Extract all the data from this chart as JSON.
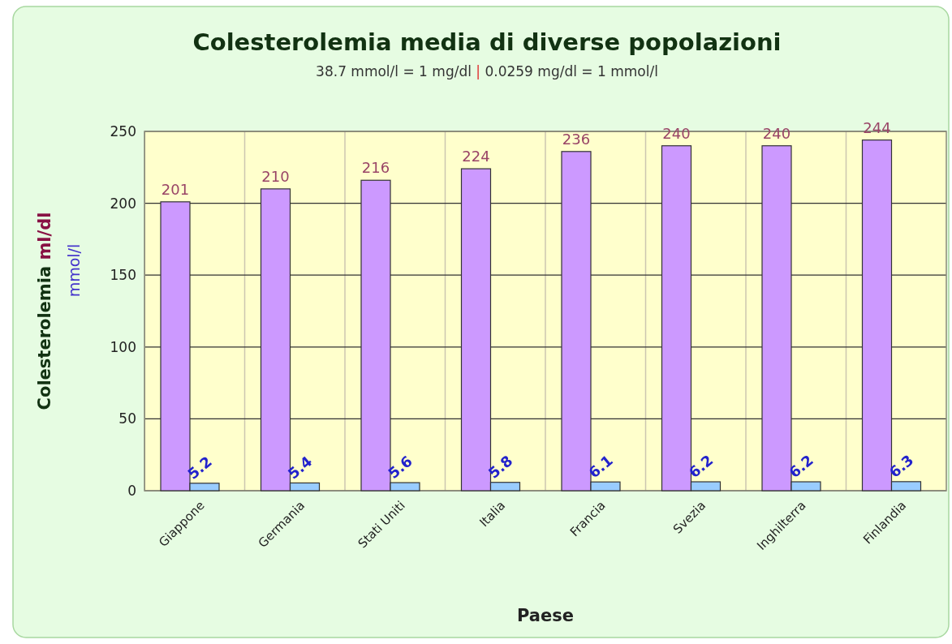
{
  "chart_data": {
    "type": "bar",
    "title": "Colesterolemia media di diverse popolazioni",
    "subtitle": "38.7 mmol/l = 1 mg/dl | 0.0259 mg/dl = 1 mmol/l",
    "xlabel": "Paese",
    "ylabel": "Colesterolemia ml/dl",
    "y2label": "mmol/l",
    "categories": [
      "Giappone",
      "Germania",
      "Stati Uniti",
      "Italia",
      "Francia",
      "Svezia",
      "Inghilterra",
      "Finlandia"
    ],
    "series": [
      {
        "color": "#cc99ff",
        "values": [
          201,
          210,
          216,
          224,
          236,
          240,
          240,
          244
        ]
      },
      {
        "color": "#99ccff",
        "values": [
          5.2,
          5.4,
          5.6,
          5.8,
          6.1,
          6.2,
          6.2,
          6.3
        ]
      }
    ],
    "ylim": [
      0,
      250
    ],
    "yticks": [
      0,
      50,
      100,
      150,
      200,
      250
    ],
    "grid": true,
    "data_labels": true
  }
}
